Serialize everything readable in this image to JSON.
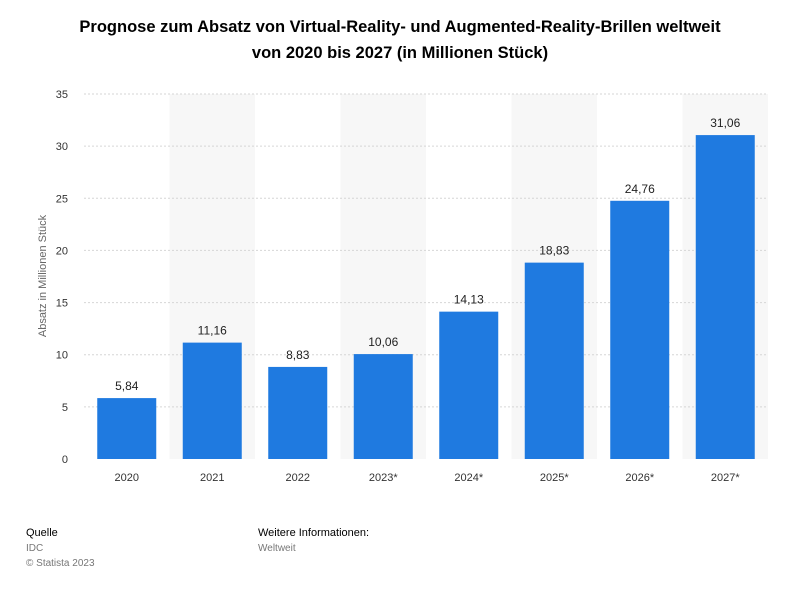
{
  "title": {
    "line1": "Prognose zum Absatz von Virtual-Reality- und Augmented-Reality-Brillen weltweit",
    "line2": "von 2020 bis 2027 (in Millionen Stück)"
  },
  "chart_data": {
    "type": "bar",
    "categories": [
      "2020",
      "2021",
      "2022",
      "2023*",
      "2024*",
      "2025*",
      "2026*",
      "2027*"
    ],
    "values": [
      5.84,
      11.16,
      8.83,
      10.06,
      14.13,
      18.83,
      24.76,
      31.06
    ],
    "value_labels": [
      "5,84",
      "11,16",
      "8,83",
      "10,06",
      "14,13",
      "18,83",
      "24,76",
      "31,06"
    ],
    "ylabel": "Absatz in Millionen Stück",
    "xlabel": "",
    "ylim": [
      0,
      35
    ],
    "yticks": [
      0,
      5,
      10,
      15,
      20,
      25,
      30,
      35
    ],
    "grid": true,
    "bar_color": "#1f7ae0",
    "stripe_color": "#f7f7f7",
    "grid_color": "#d6d6d6"
  },
  "footer": {
    "source_heading": "Quelle",
    "source": "IDC",
    "copyright": "© Statista 2023",
    "info_heading": "Weitere Informationen:",
    "info": "Weltweit"
  }
}
